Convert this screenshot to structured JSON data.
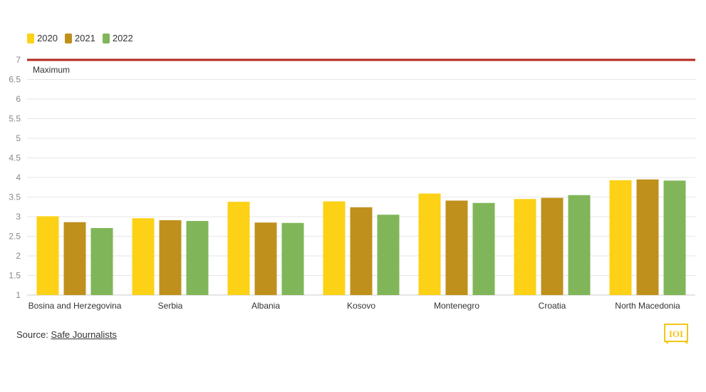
{
  "chart_data": {
    "type": "bar",
    "categories": [
      "Bosina and Herzegovina",
      "Serbia",
      "Albania",
      "Kosovo",
      "Montenegro",
      "Croatia",
      "North Macedonia"
    ],
    "series": [
      {
        "name": "2020",
        "color": "#fcd116",
        "values": [
          3.01,
          2.96,
          3.38,
          3.39,
          3.59,
          3.45,
          3.93
        ]
      },
      {
        "name": "2021",
        "color": "#c0901c",
        "values": [
          2.86,
          2.91,
          2.85,
          3.24,
          3.41,
          3.48,
          3.95
        ]
      },
      {
        "name": "2022",
        "color": "#80b659",
        "values": [
          2.71,
          2.89,
          2.84,
          3.05,
          3.35,
          3.55,
          3.92
        ]
      }
    ],
    "ylim": [
      1,
      7
    ],
    "yticks": [
      "1",
      "1.5",
      "2",
      "2.5",
      "3",
      "3.5",
      "4",
      "4.5",
      "5",
      "5.5",
      "6",
      "6.5",
      "7"
    ],
    "grid": true,
    "legend": "top-left",
    "reference_line": {
      "value": 7,
      "label": "Maximum",
      "color": "#b5271c"
    }
  },
  "source": {
    "prefix": "Source: ",
    "link_text": "Safe Journalists"
  },
  "logo": {
    "icon": "publisher-logo-icon",
    "color": "#f5c518"
  }
}
